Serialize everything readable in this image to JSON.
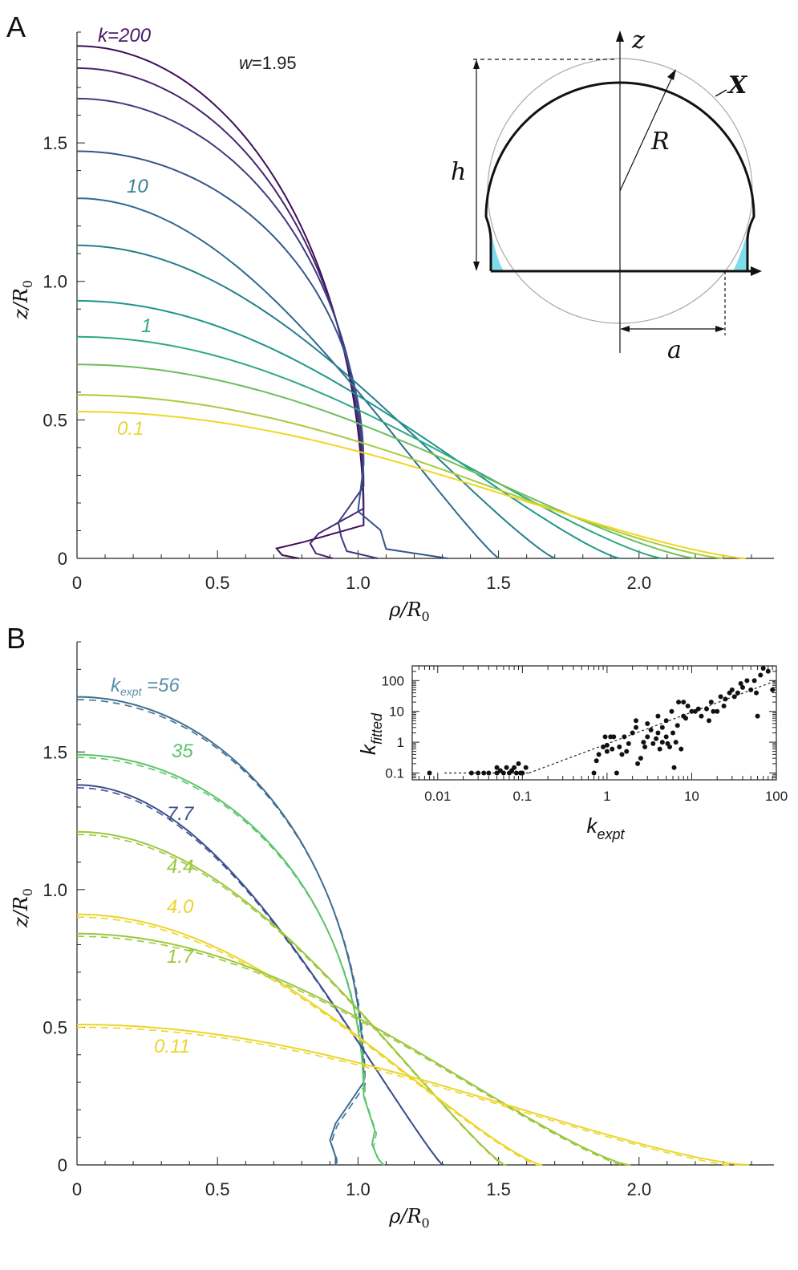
{
  "figure": {
    "panel_a_letter": "A",
    "panel_b_letter": "B"
  },
  "chart_data": [
    {
      "id": "A",
      "type": "line",
      "xlabel": "ρ/R",
      "xlabel_sub": "0",
      "ylabel": "z/R",
      "ylabel_sub": "0",
      "xlim": [
        0,
        2.48
      ],
      "ylim": [
        0,
        1.9
      ],
      "x_ticks": [
        "0",
        "0.5",
        "1.0",
        "1.5",
        "2.0"
      ],
      "y_ticks": [
        "0",
        "0.5",
        "1.0",
        "1.5"
      ],
      "annotation": "w=1.95",
      "annotation_w": "w",
      "annotation_value": "=1.95",
      "curve_labels": [
        {
          "text": "k=200",
          "color": "#4a1968"
        },
        {
          "text": "10",
          "color": "#3a7f94"
        },
        {
          "text": "1",
          "color": "#2fa98a"
        },
        {
          "text": "0.1",
          "color": "#e8d43a"
        }
      ],
      "series": [
        {
          "color": "#3f0f5c",
          "z0": 1.85,
          "foot": [
            0.81,
            0.12,
            0.71,
            0.0,
            0.79
          ]
        },
        {
          "color": "#46256f",
          "z0": 1.77,
          "foot": [
            0.86,
            0.18,
            0.83,
            0.0,
            0.91
          ]
        },
        {
          "color": "#3e3b80",
          "z0": 1.66,
          "foot": [
            0.93,
            0.26,
            0.94,
            0.0,
            1.07
          ]
        },
        {
          "color": "#36558b",
          "z0": 1.47,
          "foot": [
            1.0,
            0.34,
            1.08,
            0.0,
            1.32
          ]
        },
        {
          "color": "#2e6b8e",
          "z0": 1.3,
          "foot": [
            null,
            null,
            null,
            0.0,
            1.5
          ]
        },
        {
          "color": "#277f8e",
          "z0": 1.13,
          "foot": [
            null,
            null,
            null,
            0.0,
            1.7
          ]
        },
        {
          "color": "#1f968b",
          "z0": 0.93,
          "foot": [
            null,
            null,
            null,
            0.0,
            1.93
          ]
        },
        {
          "color": "#2ea882",
          "z0": 0.8,
          "foot": [
            null,
            null,
            null,
            0.0,
            2.08
          ]
        },
        {
          "color": "#6cbf5a",
          "z0": 0.7,
          "foot": [
            null,
            null,
            null,
            0.0,
            2.2
          ]
        },
        {
          "color": "#a6cc3e",
          "z0": 0.59,
          "foot": [
            null,
            null,
            null,
            0.0,
            2.3
          ]
        },
        {
          "color": "#f1d526",
          "z0": 0.53,
          "foot": [
            null,
            null,
            null,
            0.0,
            2.38
          ]
        }
      ],
      "inset_schematic": {
        "labels": {
          "z": "z",
          "R": "R",
          "h": "h",
          "a": "a",
          "X": "X"
        },
        "fill_color": "#7fdcec"
      }
    },
    {
      "id": "B",
      "type": "line",
      "xlabel": "ρ/R",
      "xlabel_sub": "0",
      "ylabel": "z/R",
      "ylabel_sub": "0",
      "xlim": [
        0,
        2.48
      ],
      "ylim": [
        0,
        1.9
      ],
      "x_ticks": [
        "0",
        "0.5",
        "1.0",
        "1.5",
        "2.0"
      ],
      "y_ticks": [
        "0",
        "0.5",
        "1.0",
        "1.5"
      ],
      "curve_labels": [
        {
          "text": "k",
          "sub": "expt",
          "rest": " =56",
          "color": "#5b8fa8"
        },
        {
          "text": "35",
          "color": "#5cc46a"
        },
        {
          "text": "7.7",
          "color": "#3c4e8e"
        },
        {
          "text": "4.4",
          "color": "#9cc73c"
        },
        {
          "text": "4.0",
          "color": "#ecd52a"
        },
        {
          "text": "1.7",
          "color": "#9cc73c"
        },
        {
          "text": "0.11",
          "color": "#ecd52a"
        }
      ],
      "series": [
        {
          "label": "56",
          "color": "#3f6f92",
          "z0": 1.7,
          "foot": [
            0.92,
            0.3,
            0.9,
            0.0,
            0.92
          ],
          "edge": 1.02
        },
        {
          "label": "35",
          "color": "#5cc46a",
          "z0": 1.49,
          "foot": [
            1.06,
            0.25,
            1.05,
            0.0,
            1.09
          ],
          "edge": 1.05
        },
        {
          "label": "7.7",
          "color": "#3c4e8e",
          "z0": 1.38,
          "foot": [
            null,
            null,
            null,
            0.0,
            1.3
          ]
        },
        {
          "label": "4.4",
          "color": "#9cc73c",
          "z0": 1.21,
          "foot": [
            null,
            null,
            null,
            0.0,
            1.52
          ]
        },
        {
          "label": "4.0",
          "color": "#ecd52a",
          "z0": 0.91,
          "foot": [
            null,
            null,
            null,
            0.0,
            1.65
          ]
        },
        {
          "label": "1.7",
          "color": "#9cc73c",
          "z0": 0.84,
          "foot": [
            null,
            null,
            null,
            0.0,
            1.96
          ]
        },
        {
          "label": "0.11",
          "color": "#ecd52a",
          "z0": 0.51,
          "foot": [
            null,
            null,
            null,
            0.0,
            2.38
          ]
        }
      ]
    },
    {
      "id": "B-inset",
      "type": "scatter",
      "xlabel": "k",
      "xlabel_sub": "expt",
      "ylabel": "k",
      "ylabel_sub": "fitted",
      "xscale": "log",
      "yscale": "log",
      "xlim": [
        0.005,
        100
      ],
      "ylim": [
        0.06,
        300
      ],
      "x_ticks": [
        "0.01",
        "0.1",
        "1",
        "10",
        "100"
      ],
      "y_ticks": [
        "0.1",
        "1",
        "10",
        "100"
      ],
      "fit_line": [
        [
          0.12,
          0.1
        ],
        [
          100,
          100
        ]
      ],
      "points": [
        [
          0.008,
          0.1
        ],
        [
          0.025,
          0.1
        ],
        [
          0.03,
          0.1
        ],
        [
          0.035,
          0.1
        ],
        [
          0.04,
          0.1
        ],
        [
          0.05,
          0.1
        ],
        [
          0.055,
          0.12
        ],
        [
          0.06,
          0.1
        ],
        [
          0.07,
          0.1
        ],
        [
          0.08,
          0.15
        ],
        [
          0.085,
          0.1
        ],
        [
          0.09,
          0.2
        ],
        [
          0.1,
          0.1
        ],
        [
          0.11,
          0.15
        ],
        [
          0.05,
          0.15
        ],
        [
          0.065,
          0.15
        ],
        [
          0.075,
          0.12
        ],
        [
          0.095,
          0.1
        ],
        [
          0.7,
          0.1
        ],
        [
          0.75,
          0.25
        ],
        [
          0.8,
          0.4
        ],
        [
          0.9,
          0.7
        ],
        [
          1.0,
          0.5
        ],
        [
          1.0,
          0.8
        ],
        [
          1.1,
          1.5
        ],
        [
          1.2,
          1.5
        ],
        [
          1.3,
          0.1
        ],
        [
          1.4,
          0.7
        ],
        [
          1.5,
          0.4
        ],
        [
          1.6,
          1.5
        ],
        [
          1.8,
          0.9
        ],
        [
          2.0,
          2.0
        ],
        [
          2.2,
          3.0
        ],
        [
          2.2,
          5.0
        ],
        [
          2.5,
          0.3
        ],
        [
          2.8,
          0.7
        ],
        [
          3.0,
          1.5
        ],
        [
          3.0,
          4.0
        ],
        [
          3.5,
          0.9
        ],
        [
          4.0,
          2.0
        ],
        [
          4.0,
          7.0
        ],
        [
          4.2,
          0.6
        ],
        [
          4.5,
          3.0
        ],
        [
          4.5,
          1.0
        ],
        [
          5.0,
          1.5
        ],
        [
          5.0,
          5.0
        ],
        [
          5.5,
          0.7
        ],
        [
          5.8,
          10.0
        ],
        [
          6.0,
          2.0
        ],
        [
          6.2,
          0.15
        ],
        [
          6.5,
          1.0
        ],
        [
          7.0,
          20.0
        ],
        [
          7.5,
          0.6
        ],
        [
          8.0,
          20.0
        ],
        [
          8.0,
          7.0
        ],
        [
          9.0,
          15.0
        ],
        [
          10.0,
          10.0
        ],
        [
          11.0,
          10.0
        ],
        [
          12.0,
          12.0
        ],
        [
          13.0,
          7.0
        ],
        [
          15.0,
          12.0
        ],
        [
          17.0,
          20.0
        ],
        [
          18.0,
          10.0
        ],
        [
          20.0,
          10.0
        ],
        [
          22.0,
          30.0
        ],
        [
          24.0,
          15.0
        ],
        [
          28.0,
          40.0
        ],
        [
          30.0,
          50.0
        ],
        [
          32.0,
          30.0
        ],
        [
          35.0,
          40.0
        ],
        [
          40.0,
          60.0
        ],
        [
          45.0,
          100.0
        ],
        [
          50.0,
          50.0
        ],
        [
          55.0,
          100.0
        ],
        [
          60.0,
          7.0
        ],
        [
          65.0,
          150.0
        ],
        [
          70.0,
          250.0
        ],
        [
          80.0,
          200.0
        ],
        [
          90.0,
          50.0
        ],
        [
          3.3,
          2.5
        ],
        [
          2.7,
          1.0
        ],
        [
          1.7,
          0.5
        ],
        [
          0.95,
          1.5
        ],
        [
          1.15,
          0.6
        ],
        [
          2.3,
          0.2
        ],
        [
          3.8,
          1.3
        ],
        [
          5.2,
          0.9
        ],
        [
          6.8,
          3.5
        ],
        [
          8.5,
          6.0
        ],
        [
          16.0,
          5.0
        ],
        [
          25.0,
          25.0
        ],
        [
          38.0,
          80.0
        ],
        [
          58.0,
          40.0
        ]
      ]
    }
  ]
}
